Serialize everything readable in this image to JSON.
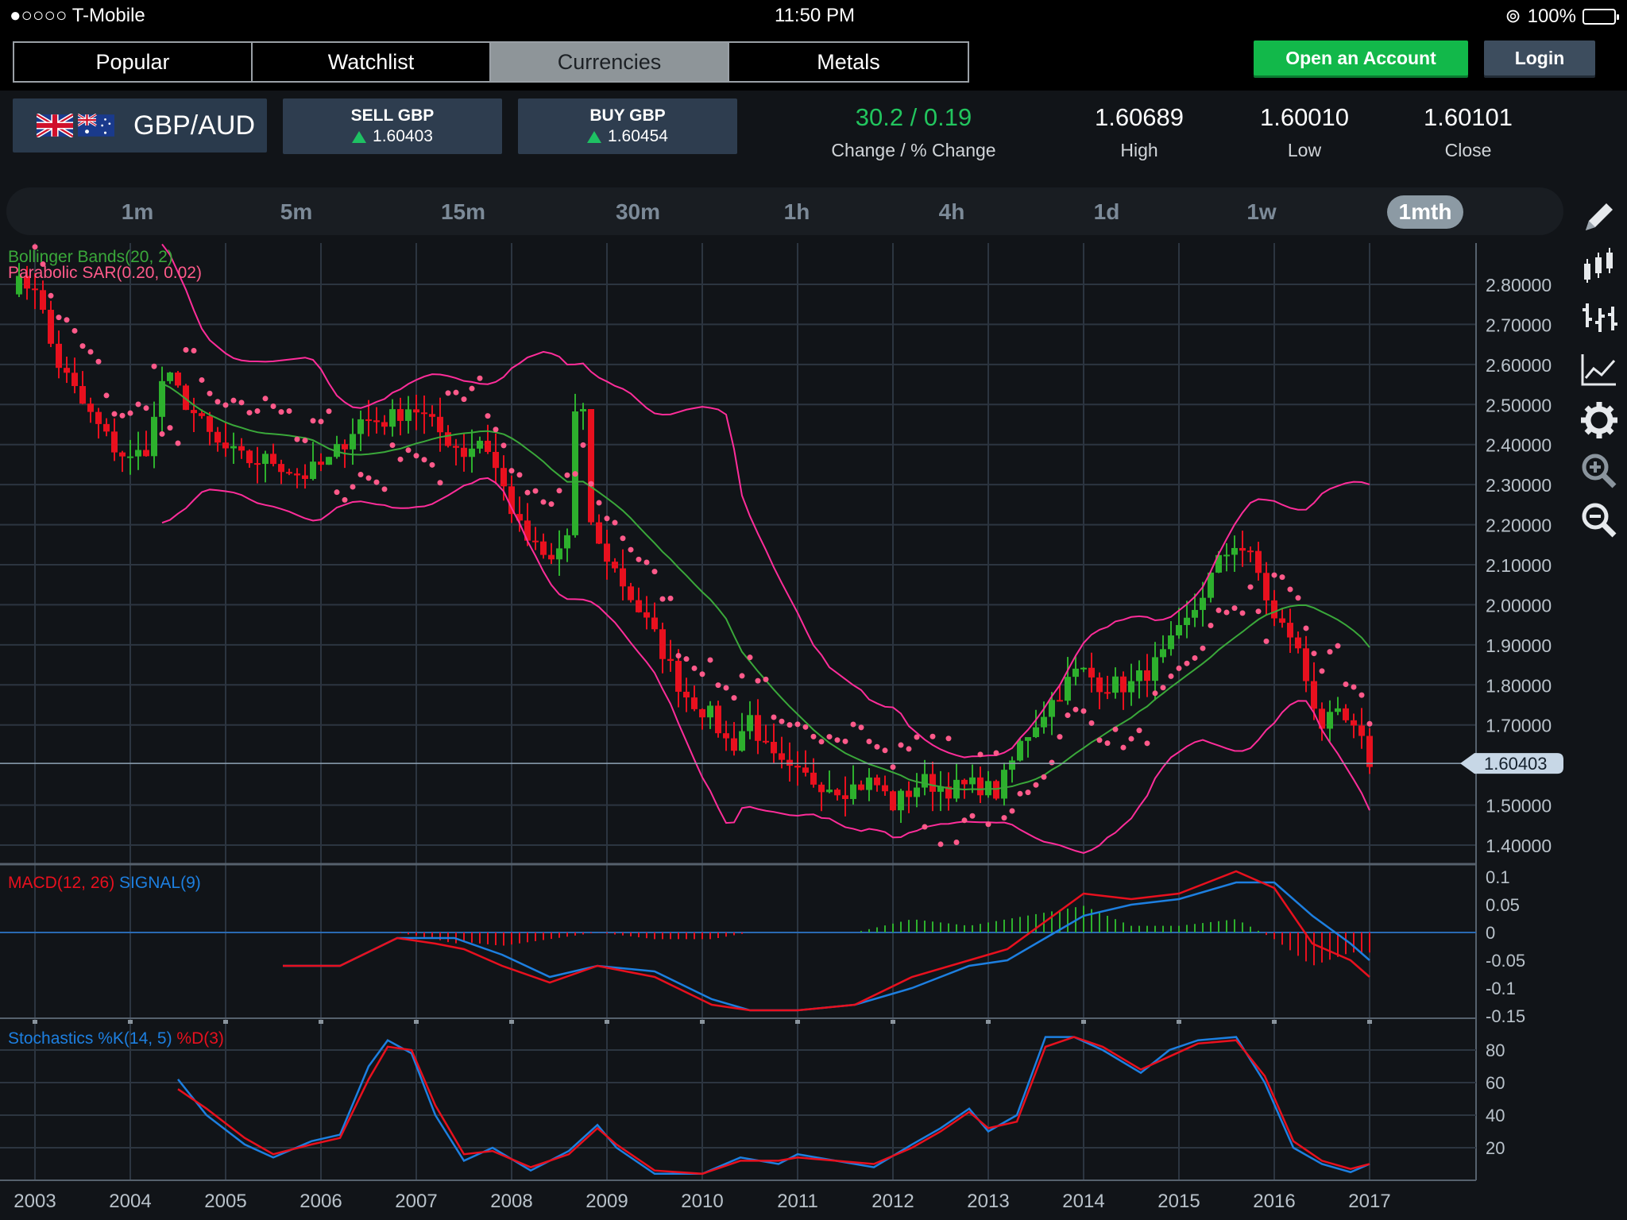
{
  "status_bar": {
    "carrier": "●○○○○ T-Mobile",
    "time": "11:50 PM",
    "battery": "100%"
  },
  "header": {
    "tabs": [
      {
        "label": "Popular"
      },
      {
        "label": "Watchlist"
      },
      {
        "label": "Currencies"
      },
      {
        "label": "Metals"
      }
    ],
    "active_tab": "Currencies",
    "open_account_label": "Open an Account",
    "login_label": "Login"
  },
  "quote": {
    "pair": "GBP/AUD",
    "sell": {
      "label": "SELL GBP",
      "price": "1.60403"
    },
    "buy": {
      "label": "BUY GBP",
      "price": "1.60454"
    },
    "change": {
      "value": "30.2 / 0.19",
      "label": "Change / % Change"
    },
    "high": {
      "value": "1.60689",
      "label": "High"
    },
    "low": {
      "value": "1.60010",
      "label": "Low"
    },
    "close": {
      "value": "1.60101",
      "label": "Close"
    }
  },
  "timeframes": [
    "1m",
    "5m",
    "15m",
    "30m",
    "1h",
    "4h",
    "1d",
    "1w",
    "1mth"
  ],
  "active_timeframe": "1mth",
  "toolbar": [
    "pencil-icon",
    "candlestick-icon",
    "ohlc-bars-icon",
    "line-chart-icon",
    "gear-icon",
    "zoom-in-icon",
    "zoom-out-icon"
  ],
  "colors": {
    "up": "#2db02d",
    "down": "#e8101e",
    "bollinger": "#ff2d9a",
    "sar": "#ff5a8a",
    "macd": "#e8101e",
    "signal": "#1d7fe0",
    "stoch_k": "#1d7fe0",
    "stoch_d": "#e8101e",
    "accent_green": "#12b84a"
  },
  "chart_data": [
    {
      "type": "candlestick",
      "indicator_labels": [
        "Bollinger Bands(20, 2)",
        "Parabolic SAR(0.20, 0.02)"
      ],
      "x_ticks": [
        "2003",
        "2004",
        "2005",
        "2006",
        "2007",
        "2008",
        "2009",
        "2010",
        "2011",
        "2012",
        "2013",
        "2014",
        "2015",
        "2016",
        "2017"
      ],
      "y_ticks": [
        "2.80000",
        "2.70000",
        "2.60000",
        "2.50000",
        "2.40000",
        "2.30000",
        "2.20000",
        "2.10000",
        "2.00000",
        "1.90000",
        "1.80000",
        "1.70000",
        "1.60403",
        "1.50000",
        "1.40000"
      ],
      "ylim": [
        1.4,
        2.88
      ],
      "current_price": 1.60403,
      "close_path": [
        [
          2003.0,
          2.8
        ],
        [
          2003.2,
          2.62
        ],
        [
          2003.5,
          2.5
        ],
        [
          2003.8,
          2.4
        ],
        [
          2004.0,
          2.36
        ],
        [
          2004.2,
          2.4
        ],
        [
          2004.35,
          2.58
        ],
        [
          2004.6,
          2.5
        ],
        [
          2004.9,
          2.4
        ],
        [
          2005.2,
          2.36
        ],
        [
          2005.5,
          2.36
        ],
        [
          2005.8,
          2.32
        ],
        [
          2006.1,
          2.36
        ],
        [
          2006.4,
          2.46
        ],
        [
          2006.7,
          2.46
        ],
        [
          2006.95,
          2.5
        ],
        [
          2007.2,
          2.44
        ],
        [
          2007.5,
          2.38
        ],
        [
          2007.7,
          2.42
        ],
        [
          2007.9,
          2.3
        ],
        [
          2008.1,
          2.18
        ],
        [
          2008.4,
          2.1
        ],
        [
          2008.6,
          2.18
        ],
        [
          2008.7,
          2.62
        ],
        [
          2008.85,
          2.16
        ],
        [
          2009.0,
          2.12
        ],
        [
          2009.3,
          2.0
        ],
        [
          2009.55,
          1.9
        ],
        [
          2009.8,
          1.78
        ],
        [
          2010.1,
          1.72
        ],
        [
          2010.3,
          1.64
        ],
        [
          2010.5,
          1.72
        ],
        [
          2010.7,
          1.62
        ],
        [
          2010.9,
          1.58
        ],
        [
          2011.2,
          1.56
        ],
        [
          2011.5,
          1.54
        ],
        [
          2011.8,
          1.56
        ],
        [
          2012.0,
          1.5
        ],
        [
          2012.3,
          1.56
        ],
        [
          2012.6,
          1.54
        ],
        [
          2012.9,
          1.55
        ],
        [
          2013.1,
          1.53
        ],
        [
          2013.35,
          1.66
        ],
        [
          2013.6,
          1.74
        ],
        [
          2013.95,
          1.84
        ],
        [
          2014.2,
          1.8
        ],
        [
          2014.5,
          1.8
        ],
        [
          2014.8,
          1.86
        ],
        [
          2015.1,
          1.96
        ],
        [
          2015.4,
          2.1
        ],
        [
          2015.6,
          2.16
        ],
        [
          2015.8,
          2.1
        ],
        [
          2016.0,
          1.96
        ],
        [
          2016.2,
          1.92
        ],
        [
          2016.35,
          1.8
        ],
        [
          2016.5,
          1.7
        ],
        [
          2016.7,
          1.72
        ],
        [
          2016.9,
          1.66
        ],
        [
          2017.0,
          1.61
        ]
      ]
    },
    {
      "type": "line",
      "title": "MACD(12, 26) SIGNAL(9)",
      "y_ticks": [
        "0.1",
        "0.05",
        "0",
        "-0.05",
        "-0.1",
        "-0.15"
      ],
      "ylim": [
        -0.15,
        0.1
      ],
      "series": [
        {
          "name": "MACD(12, 26)",
          "values": [
            [
              2005.6,
              -0.06
            ],
            [
              2006.2,
              -0.06
            ],
            [
              2006.8,
              -0.01
            ],
            [
              2007.2,
              -0.02
            ],
            [
              2007.5,
              -0.03
            ],
            [
              2007.9,
              -0.06
            ],
            [
              2008.4,
              -0.09
            ],
            [
              2008.9,
              -0.06
            ],
            [
              2009.5,
              -0.08
            ],
            [
              2010.1,
              -0.13
            ],
            [
              2010.5,
              -0.14
            ],
            [
              2011.0,
              -0.14
            ],
            [
              2011.6,
              -0.13
            ],
            [
              2012.2,
              -0.08
            ],
            [
              2012.8,
              -0.05
            ],
            [
              2013.2,
              -0.03
            ],
            [
              2013.6,
              0.02
            ],
            [
              2014.0,
              0.07
            ],
            [
              2014.5,
              0.06
            ],
            [
              2015.0,
              0.07
            ],
            [
              2015.6,
              0.11
            ],
            [
              2016.0,
              0.08
            ],
            [
              2016.4,
              -0.02
            ],
            [
              2016.8,
              -0.05
            ],
            [
              2017.0,
              -0.08
            ]
          ]
        },
        {
          "name": "SIGNAL(9)",
          "values": [
            [
              2005.6,
              -0.06
            ],
            [
              2006.2,
              -0.06
            ],
            [
              2006.8,
              -0.01
            ],
            [
              2007.4,
              -0.01
            ],
            [
              2007.9,
              -0.04
            ],
            [
              2008.4,
              -0.08
            ],
            [
              2008.9,
              -0.06
            ],
            [
              2009.5,
              -0.07
            ],
            [
              2010.1,
              -0.12
            ],
            [
              2010.5,
              -0.14
            ],
            [
              2011.0,
              -0.14
            ],
            [
              2011.6,
              -0.13
            ],
            [
              2012.2,
              -0.1
            ],
            [
              2012.8,
              -0.06
            ],
            [
              2013.2,
              -0.05
            ],
            [
              2013.6,
              -0.01
            ],
            [
              2014.0,
              0.03
            ],
            [
              2014.5,
              0.05
            ],
            [
              2015.0,
              0.06
            ],
            [
              2015.6,
              0.09
            ],
            [
              2016.0,
              0.09
            ],
            [
              2016.4,
              0.03
            ],
            [
              2016.8,
              -0.02
            ],
            [
              2017.0,
              -0.05
            ]
          ]
        }
      ]
    },
    {
      "type": "line",
      "title": "Stochastics %K(14, 5) %D(3)",
      "y_ticks": [
        "80",
        "60",
        "40",
        "20"
      ],
      "ylim": [
        0,
        95
      ],
      "series": [
        {
          "name": "%K(14, 5)",
          "values": [
            [
              2004.5,
              62
            ],
            [
              2004.8,
              40
            ],
            [
              2005.2,
              22
            ],
            [
              2005.5,
              14
            ],
            [
              2005.9,
              24
            ],
            [
              2006.2,
              28
            ],
            [
              2006.5,
              70
            ],
            [
              2006.7,
              86
            ],
            [
              2006.95,
              78
            ],
            [
              2007.2,
              40
            ],
            [
              2007.5,
              12
            ],
            [
              2007.8,
              20
            ],
            [
              2008.2,
              6
            ],
            [
              2008.6,
              18
            ],
            [
              2008.9,
              34
            ],
            [
              2009.1,
              20
            ],
            [
              2009.5,
              4
            ],
            [
              2010.0,
              4
            ],
            [
              2010.4,
              14
            ],
            [
              2010.8,
              10
            ],
            [
              2011.0,
              16
            ],
            [
              2011.4,
              12
            ],
            [
              2011.8,
              8
            ],
            [
              2012.2,
              22
            ],
            [
              2012.5,
              32
            ],
            [
              2012.8,
              44
            ],
            [
              2013.0,
              30
            ],
            [
              2013.3,
              40
            ],
            [
              2013.6,
              88
            ],
            [
              2013.9,
              88
            ],
            [
              2014.2,
              80
            ],
            [
              2014.6,
              66
            ],
            [
              2014.9,
              80
            ],
            [
              2015.2,
              86
            ],
            [
              2015.6,
              88
            ],
            [
              2015.9,
              60
            ],
            [
              2016.2,
              20
            ],
            [
              2016.5,
              10
            ],
            [
              2016.8,
              5
            ],
            [
              2017.0,
              10
            ]
          ]
        },
        {
          "name": "%D(3)",
          "values": [
            [
              2004.5,
              56
            ],
            [
              2004.8,
              44
            ],
            [
              2005.2,
              26
            ],
            [
              2005.5,
              16
            ],
            [
              2005.9,
              22
            ],
            [
              2006.2,
              26
            ],
            [
              2006.5,
              62
            ],
            [
              2006.7,
              82
            ],
            [
              2006.95,
              80
            ],
            [
              2007.2,
              46
            ],
            [
              2007.5,
              16
            ],
            [
              2007.8,
              18
            ],
            [
              2008.2,
              8
            ],
            [
              2008.6,
              16
            ],
            [
              2008.9,
              32
            ],
            [
              2009.1,
              22
            ],
            [
              2009.5,
              6
            ],
            [
              2010.0,
              4
            ],
            [
              2010.4,
              12
            ],
            [
              2010.8,
              12
            ],
            [
              2011.0,
              14
            ],
            [
              2011.4,
              12
            ],
            [
              2011.8,
              10
            ],
            [
              2012.2,
              20
            ],
            [
              2012.5,
              30
            ],
            [
              2012.8,
              42
            ],
            [
              2013.0,
              32
            ],
            [
              2013.3,
              36
            ],
            [
              2013.6,
              82
            ],
            [
              2013.9,
              88
            ],
            [
              2014.2,
              82
            ],
            [
              2014.6,
              68
            ],
            [
              2014.9,
              76
            ],
            [
              2015.2,
              84
            ],
            [
              2015.6,
              86
            ],
            [
              2015.9,
              64
            ],
            [
              2016.2,
              24
            ],
            [
              2016.5,
              12
            ],
            [
              2016.8,
              7
            ],
            [
              2017.0,
              10
            ]
          ]
        }
      ]
    }
  ]
}
